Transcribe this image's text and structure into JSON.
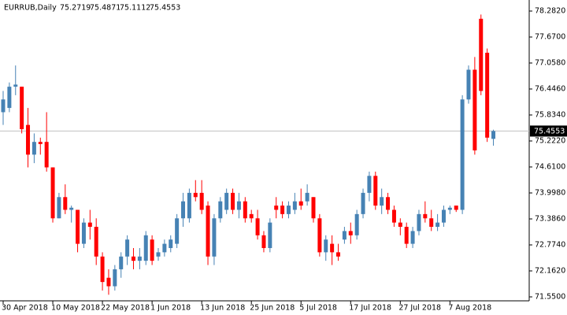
{
  "chart_data": {
    "type": "candlestick",
    "symbol": "EURRUB,Daily",
    "quote": [
      75.2719,
      75.4871,
      75.1112,
      75.4553
    ],
    "last_price": 75.4553,
    "up_color": "#4682b4",
    "down_color": "#ff0000",
    "ylim": [
      71.457,
      78.542
    ],
    "yticks": [
      {
        "value": 78.282,
        "label": "78.2820"
      },
      {
        "value": 77.67,
        "label": "77.6700"
      },
      {
        "value": 77.058,
        "label": "77.0580"
      },
      {
        "value": 76.446,
        "label": "76.4460"
      },
      {
        "value": 75.834,
        "label": "75.8340"
      },
      {
        "value": 75.222,
        "label": "75.2220"
      },
      {
        "value": 74.61,
        "label": "74.6100"
      },
      {
        "value": 73.998,
        "label": "73.9980"
      },
      {
        "value": 73.386,
        "label": "73.3860"
      },
      {
        "value": 72.774,
        "label": "72.7740"
      },
      {
        "value": 72.162,
        "label": "72.1620"
      },
      {
        "value": 71.55,
        "label": "71.5500"
      }
    ],
    "categories": [
      "30 Apr 2018",
      null,
      null,
      null,
      null,
      null,
      null,
      null,
      "10 May 2018",
      null,
      null,
      null,
      null,
      null,
      null,
      null,
      "22 May 2018",
      null,
      null,
      null,
      null,
      null,
      null,
      null,
      "1 Jun 2018",
      null,
      null,
      null,
      null,
      null,
      null,
      null,
      "13 Jun 2018",
      null,
      null,
      null,
      null,
      null,
      null,
      null,
      "25 Jun 2018",
      null,
      null,
      null,
      null,
      null,
      null,
      null,
      "5 Jul 2018",
      null,
      null,
      null,
      null,
      null,
      null,
      null,
      "17 Jul 2018",
      null,
      null,
      null,
      null,
      null,
      null,
      null,
      "27 Jul 2018",
      null,
      null,
      null,
      null,
      null,
      null,
      null,
      "7 Aug 2018",
      null,
      null,
      null,
      null,
      null,
      null,
      null
    ],
    "open": [
      75.9,
      76.0,
      76.5,
      76.5,
      75.6,
      74.9,
      75.2,
      75.2,
      74.6,
      73.4,
      73.9,
      73.6,
      73.6,
      72.8,
      73.3,
      73.2,
      72.5,
      72.0,
      71.8,
      72.2,
      72.5,
      72.5,
      72.4,
      72.4,
      72.9,
      72.5,
      72.6,
      72.7,
      72.8,
      73.4,
      73.4,
      74.0,
      74.0,
      73.7,
      72.5,
      73.4,
      73.6,
      74.0,
      73.6,
      73.8,
      73.5,
      73.4,
      73.0,
      72.7,
      73.7,
      73.7,
      73.5,
      73.6,
      73.8,
      73.8,
      73.9,
      73.4,
      72.6,
      72.8,
      72.6,
      72.9,
      73.1,
      73.0,
      73.5,
      74.0,
      74.4,
      73.7,
      73.9,
      73.6,
      73.3,
      73.2,
      72.8,
      73.1,
      73.5,
      73.4,
      73.2,
      73.3,
      73.6,
      73.7,
      73.6,
      76.2,
      76.9,
      78.1,
      77.3,
      75.2719
    ],
    "high": [
      76.4,
      76.6,
      77.0,
      76.5,
      76.0,
      75.4,
      75.3,
      75.9,
      74.6,
      74.0,
      74.2,
      73.7,
      73.6,
      73.4,
      73.6,
      73.4,
      72.6,
      72.2,
      72.3,
      72.6,
      73.0,
      72.7,
      72.7,
      73.1,
      73.0,
      72.7,
      72.9,
      73.0,
      73.5,
      74.0,
      74.1,
      74.3,
      74.3,
      73.8,
      73.5,
      73.9,
      74.1,
      74.1,
      74.0,
      73.9,
      73.6,
      73.6,
      73.1,
      73.4,
      73.9,
      73.8,
      73.8,
      74.0,
      74.1,
      74.2,
      73.9,
      73.5,
      73.0,
      73.0,
      72.8,
      73.2,
      73.3,
      73.6,
      74.1,
      74.5,
      74.5,
      74.1,
      74.0,
      73.7,
      73.4,
      73.3,
      73.2,
      73.6,
      73.8,
      73.6,
      73.5,
      73.7,
      73.7,
      73.7,
      76.3,
      77.0,
      77.2,
      78.2,
      77.4,
      75.4871
    ],
    "low": [
      75.6,
      75.9,
      76.3,
      75.4,
      74.6,
      74.7,
      74.9,
      74.5,
      73.3,
      73.4,
      73.5,
      73.3,
      72.6,
      72.7,
      72.9,
      72.3,
      71.7,
      71.6,
      71.7,
      72.0,
      72.3,
      72.2,
      72.2,
      72.3,
      72.3,
      72.4,
      72.5,
      72.6,
      72.7,
      73.2,
      73.3,
      73.8,
      73.5,
      72.3,
      72.3,
      73.3,
      73.5,
      73.5,
      73.4,
      73.3,
      73.3,
      72.9,
      72.6,
      72.6,
      73.4,
      73.4,
      73.4,
      73.5,
      73.6,
      73.7,
      73.3,
      72.5,
      72.4,
      72.3,
      72.4,
      72.8,
      72.8,
      72.9,
      73.4,
      73.8,
      73.6,
      73.5,
      73.5,
      73.2,
      73.0,
      72.7,
      72.7,
      73.0,
      73.3,
      73.1,
      73.1,
      73.2,
      73.5,
      73.55,
      73.5,
      76.1,
      74.9,
      76.3,
      75.2,
      75.1112
    ],
    "close": [
      76.2,
      76.5,
      76.55,
      75.5,
      74.9,
      75.2,
      75.15,
      74.6,
      73.4,
      73.9,
      73.6,
      73.65,
      72.8,
      73.3,
      73.2,
      72.5,
      71.9,
      71.8,
      72.2,
      72.5,
      72.9,
      72.4,
      72.5,
      73.0,
      72.4,
      72.6,
      72.8,
      72.9,
      73.4,
      73.8,
      74.0,
      73.9,
      73.6,
      72.5,
      73.4,
      73.8,
      74.0,
      73.6,
      73.8,
      73.4,
      73.4,
      73.0,
      72.7,
      73.3,
      73.6,
      73.5,
      73.7,
      73.8,
      73.7,
      74.0,
      73.4,
      72.6,
      72.9,
      72.6,
      72.5,
      73.1,
      73.0,
      73.5,
      74.0,
      74.4,
      73.7,
      73.9,
      73.6,
      73.3,
      73.2,
      72.8,
      73.1,
      73.5,
      73.4,
      73.2,
      73.3,
      73.6,
      73.65,
      73.6,
      76.2,
      76.9,
      75.0,
      76.4,
      75.3,
      75.4553
    ]
  }
}
